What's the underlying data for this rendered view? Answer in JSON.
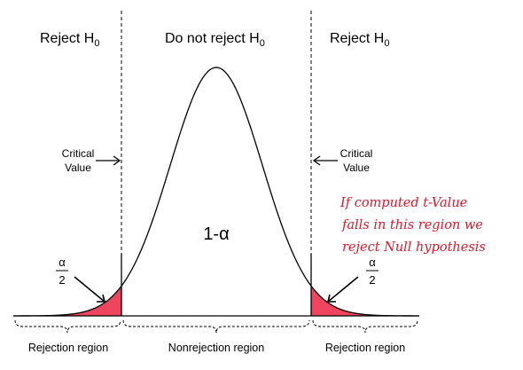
{
  "headers": {
    "reject_left": "Reject H",
    "do_not_reject": "Do not reject H",
    "reject_right": "Reject H",
    "subscript": "0"
  },
  "critical_value": {
    "line1": "Critical",
    "line2": "Value"
  },
  "center_area_label": "1-α",
  "tail_area": {
    "numerator": "α",
    "denominator": "2"
  },
  "regions": {
    "left": "Rejection region",
    "middle": "Nonrejection region",
    "right": "Rejection region"
  },
  "handwritten_note": [
    "If computed t-Value",
    "falls in this region we",
    "reject Null hypothesis"
  ],
  "colors": {
    "tail_fill": "#f0455f",
    "curve": "#000000",
    "note": "#e0162b"
  }
}
